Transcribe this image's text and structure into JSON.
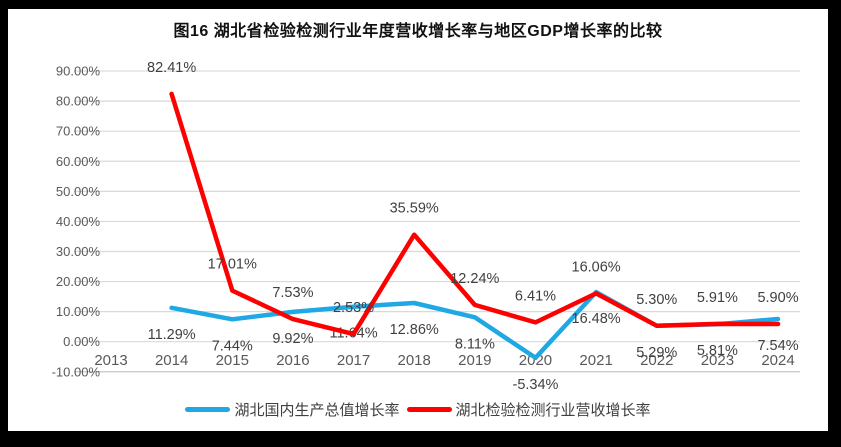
{
  "colors": {
    "frame": "#000000",
    "background": "#FFFFFF",
    "gridline": "#D9D9D9",
    "axis_line": "#C6C6C6",
    "axis_text": "#595959",
    "label_text": "#404040",
    "title_text": "#111111"
  },
  "chart_data": {
    "type": "line",
    "title": "图16  湖北省检验检测行业年度营收增长率与地区GDP增长率的比较",
    "categories": [
      "2013",
      "2014",
      "2015",
      "2016",
      "2017",
      "2018",
      "2019",
      "2020",
      "2021",
      "2022",
      "2023",
      "2024"
    ],
    "series": [
      {
        "name": "湖北国内生产总值增长率",
        "color": "#20A8E4",
        "label_position": "below",
        "values": [
          null,
          11.29,
          7.44,
          9.92,
          11.64,
          12.86,
          8.11,
          -5.34,
          16.48,
          5.29,
          5.81,
          7.54
        ]
      },
      {
        "name": "湖北检验检测行业营收增长率",
        "color": "#FF0000",
        "label_position": "above",
        "values": [
          null,
          82.41,
          17.01,
          7.53,
          2.53,
          35.59,
          12.24,
          6.41,
          16.06,
          5.3,
          5.91,
          5.9
        ]
      }
    ],
    "ylim": [
      -10,
      90
    ],
    "ytick_step": 10,
    "ytick_labels": [
      "90.00%",
      "80.00%",
      "70.00%",
      "60.00%",
      "50.00%",
      "40.00%",
      "30.00%",
      "20.00%",
      "10.00%",
      "0.00%",
      "-10.00%"
    ],
    "value_format": "0.00%",
    "grid": true,
    "legend_position": "bottom"
  }
}
